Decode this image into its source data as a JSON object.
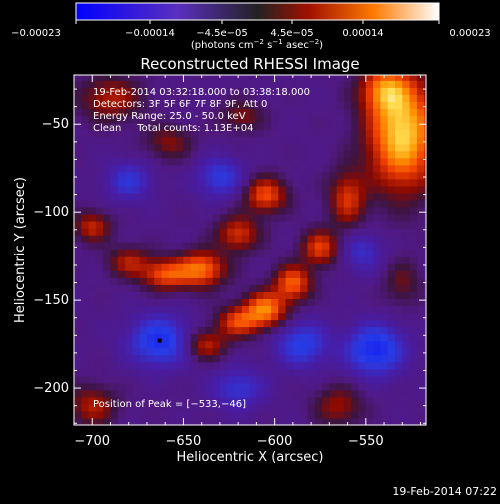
{
  "chart_data": {
    "type": "heatmap",
    "title": "Reconstructed RHESSI Image",
    "xlabel": "Heliocentric X (arcsec)",
    "ylabel": "Heliocentric Y (arcsec)",
    "xlim": [
      -710,
      -517
    ],
    "ylim": [
      -221,
      -22
    ],
    "xticks": [
      -700,
      -650,
      -600,
      -550
    ],
    "xtick_labels": [
      "−700",
      "−650",
      "−600",
      "−550"
    ],
    "yticks": [
      -50,
      -100,
      -150,
      -200
    ],
    "ytick_labels": [
      "−50",
      "−100",
      "−150",
      "−200"
    ],
    "colorbar": {
      "ticks": [
        -0.00023,
        -0.00014,
        -4.5e-05,
        4.5e-05,
        0.00014,
        0.00023
      ],
      "tick_labels": [
        "−0.00023",
        "−0.00014",
        "−4.5e−05",
        "4.5e−05",
        "0.00014",
        "0.00023"
      ],
      "units_prefix": "(photons cm",
      "units_exp1": "−2",
      "units_mid": " s",
      "units_exp2": "−1",
      "units_mid2": " asec",
      "units_exp3": "−2",
      "units_suffix": ")"
    },
    "annotations": [
      "19-Feb-2014 03:32:18.000 to 03:38:18.000",
      "Detectors: 3F 5F 6F 7F 8F 9F, Att 0",
      "Energy Range: 25.0 - 50.0 keV",
      "Clean     Total counts: 1.13E+04"
    ],
    "peak_label": "Position of Peak = [−533,−46]",
    "peak_position": [
      -533,
      -46
    ],
    "marker_position": [
      -663,
      -173
    ],
    "features": [
      {
        "x": -530,
        "y": -55,
        "sx": 13,
        "sy": 22,
        "amp": 1.0
      },
      {
        "x": -540,
        "y": -30,
        "sx": 9,
        "sy": 9,
        "amp": 0.55
      },
      {
        "x": -560,
        "y": -92,
        "sx": 7,
        "sy": 11,
        "amp": 0.5
      },
      {
        "x": -575,
        "y": -120,
        "sx": 7,
        "sy": 7,
        "amp": 0.55
      },
      {
        "x": -590,
        "y": -140,
        "sx": 7,
        "sy": 7,
        "amp": 0.65
      },
      {
        "x": -605,
        "y": -155,
        "sx": 8,
        "sy": 7,
        "amp": 0.75
      },
      {
        "x": -620,
        "y": -162,
        "sx": 8,
        "sy": 6,
        "amp": 0.55
      },
      {
        "x": -638,
        "y": -175,
        "sx": 8,
        "sy": 6,
        "amp": 0.45
      },
      {
        "x": -605,
        "y": -90,
        "sx": 8,
        "sy": 7,
        "amp": 0.6
      },
      {
        "x": -620,
        "y": -112,
        "sx": 8,
        "sy": 7,
        "amp": 0.5
      },
      {
        "x": -640,
        "y": -132,
        "sx": 9,
        "sy": 7,
        "amp": 0.7
      },
      {
        "x": -660,
        "y": -135,
        "sx": 9,
        "sy": 6,
        "amp": 0.6
      },
      {
        "x": -680,
        "y": -128,
        "sx": 8,
        "sy": 6,
        "amp": 0.4
      },
      {
        "x": -700,
        "y": -108,
        "sx": 7,
        "sy": 6,
        "amp": 0.45
      },
      {
        "x": -690,
        "y": -35,
        "sx": 12,
        "sy": 9,
        "amp": 0.4
      },
      {
        "x": -658,
        "y": -60,
        "sx": 9,
        "sy": 7,
        "amp": 0.3
      },
      {
        "x": -618,
        "y": -45,
        "sx": 8,
        "sy": 6,
        "amp": 0.3
      },
      {
        "x": -700,
        "y": -210,
        "sx": 9,
        "sy": 8,
        "amp": 0.4
      },
      {
        "x": -565,
        "y": -210,
        "sx": 9,
        "sy": 8,
        "amp": 0.35
      },
      {
        "x": -530,
        "y": -140,
        "sx": 7,
        "sy": 9,
        "amp": 0.25
      },
      {
        "x": -663,
        "y": -173,
        "sx": 12,
        "sy": 10,
        "amp": -0.55
      },
      {
        "x": -585,
        "y": -175,
        "sx": 10,
        "sy": 9,
        "amp": -0.45
      },
      {
        "x": -545,
        "y": -178,
        "sx": 11,
        "sy": 10,
        "amp": -0.6
      },
      {
        "x": -630,
        "y": -80,
        "sx": 9,
        "sy": 8,
        "amp": -0.4
      },
      {
        "x": -680,
        "y": -82,
        "sx": 9,
        "sy": 8,
        "amp": -0.35
      },
      {
        "x": -552,
        "y": -122,
        "sx": 8,
        "sy": 8,
        "amp": -0.3
      },
      {
        "x": -620,
        "y": -200,
        "sx": 10,
        "sy": 8,
        "amp": -0.35
      }
    ]
  },
  "footer": {
    "timestamp": "19-Feb-2014 07:22"
  }
}
